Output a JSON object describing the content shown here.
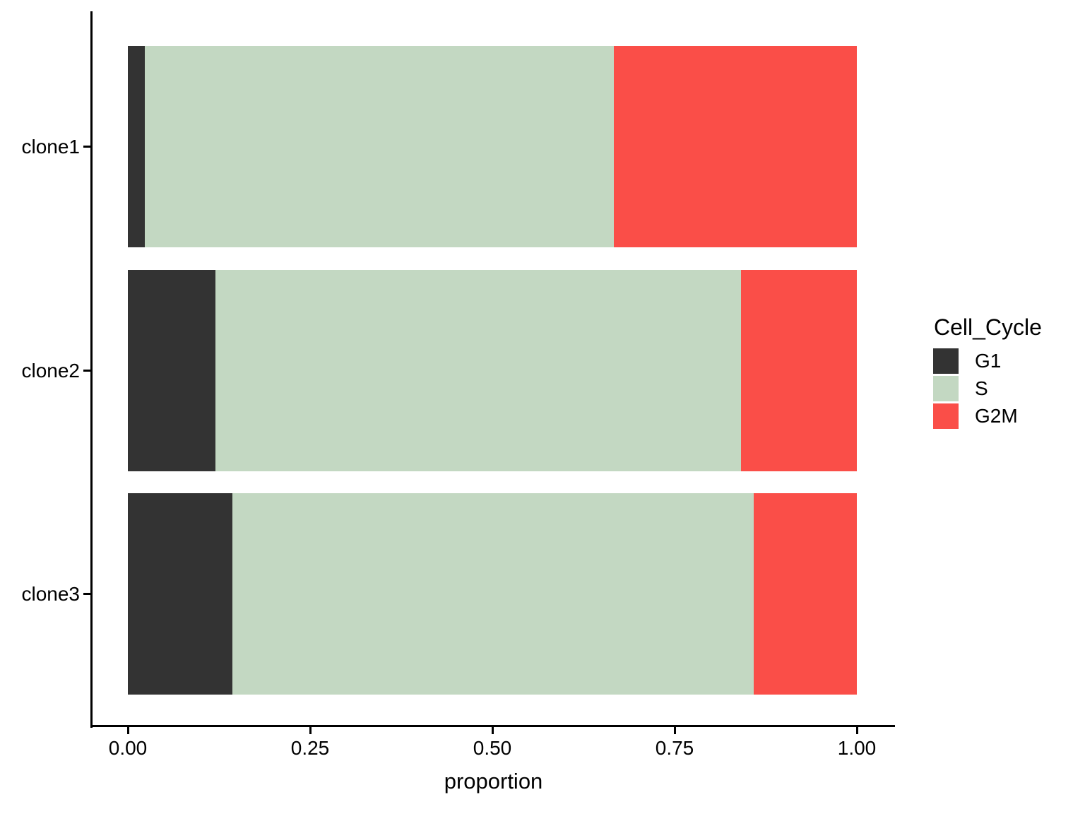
{
  "chart_data": {
    "type": "bar",
    "orientation": "horizontal",
    "stacked": true,
    "title": "",
    "xlabel": "proportion",
    "ylabel": "",
    "categories": [
      "clone1",
      "clone2",
      "clone3"
    ],
    "series": [
      {
        "name": "G1",
        "color": "#333333",
        "values": [
          0.023,
          0.12,
          0.143
        ]
      },
      {
        "name": "S",
        "color": "#C3D8C2",
        "values": [
          0.644,
          0.721,
          0.716
        ]
      },
      {
        "name": "G2M",
        "color": "#FA4E48",
        "values": [
          0.333,
          0.159,
          0.141
        ]
      }
    ],
    "x_ticks": [
      "0.00",
      "0.25",
      "0.50",
      "0.75",
      "1.00"
    ],
    "x_tick_values": [
      0,
      0.25,
      0.5,
      0.75,
      1.0
    ],
    "xlim": [
      0,
      1
    ],
    "grid": false,
    "axis_color": "#000000",
    "text_color": "#000000",
    "background_color": "#FFFFFF",
    "legend": {
      "title": "Cell_Cycle",
      "position": "right",
      "entries": [
        {
          "label": "G1",
          "color": "#333333"
        },
        {
          "label": "S",
          "color": "#C3D8C2"
        },
        {
          "label": "G2M",
          "color": "#FA4E48"
        }
      ]
    }
  }
}
